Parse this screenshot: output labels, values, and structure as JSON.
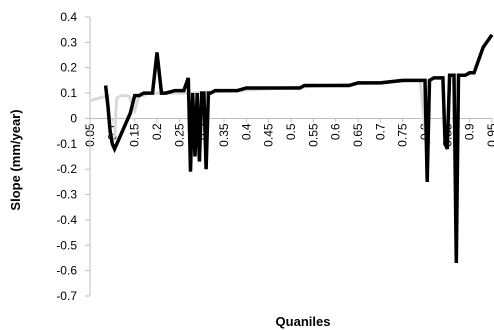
{
  "chart_data": {
    "type": "line",
    "title": "",
    "xlabel": "Quaniles",
    "ylabel": "Slope (mm/year)",
    "xlim": [
      0.05,
      0.95
    ],
    "ylim": [
      -0.7,
      0.4
    ],
    "y_ticks": [
      0.4,
      0.3,
      0.2,
      0.1,
      0,
      -0.1,
      -0.2,
      -0.3,
      -0.4,
      -0.5,
      -0.6,
      -0.7
    ],
    "x_ticks": [
      0.05,
      0.1,
      0.15,
      0.2,
      0.25,
      0.3,
      0.35,
      0.4,
      0.45,
      0.5,
      0.55,
      0.6,
      0.65,
      0.7,
      0.75,
      0.8,
      0.85,
      0.9,
      0.95
    ],
    "x_tick_labels": [
      "0.05",
      "0.1",
      "0.15",
      "0.2",
      "0.25",
      "0.3",
      "0.35",
      "0.4",
      "0.45",
      "0.5",
      "0.55",
      "0.6",
      "0.65",
      "0.7",
      "0.75",
      "0.8",
      "0.85",
      "0.9",
      "0.95"
    ],
    "grid": false,
    "legend": "none",
    "series": [
      {
        "color": "#d9d9d9",
        "x": [
          0.05,
          0.07,
          0.09,
          0.095,
          0.1,
          0.105,
          0.11,
          0.12,
          0.135,
          0.14,
          0.145,
          0.15,
          0.16,
          0.17,
          0.18,
          0.2,
          0.22,
          0.24,
          0.26,
          0.28,
          0.785,
          0.79,
          0.8,
          0.81
        ],
        "y": [
          0.07,
          0.08,
          0.09,
          -0.05,
          -0.08,
          -0.07,
          0.08,
          0.09,
          0.09,
          0.08,
          0.05,
          0.03,
          0.09,
          0.09,
          0.1,
          0.1,
          0.1,
          0.1,
          0.1,
          0.1,
          0.15,
          0.14,
          -0.05,
          -0.1
        ]
      },
      {
        "color": "#000000",
        "x": [
          0.085,
          0.09,
          0.095,
          0.1,
          0.105,
          0.14,
          0.15,
          0.16,
          0.17,
          0.18,
          0.19,
          0.2,
          0.21,
          0.215,
          0.22,
          0.24,
          0.26,
          0.27,
          0.275,
          0.28,
          0.285,
          0.29,
          0.295,
          0.3,
          0.305,
          0.31,
          0.315,
          0.32,
          0.33,
          0.34,
          0.35,
          0.38,
          0.4,
          0.43,
          0.45,
          0.5,
          0.52,
          0.53,
          0.55,
          0.6,
          0.63,
          0.65,
          0.7,
          0.75,
          0.79,
          0.8,
          0.805,
          0.81,
          0.82,
          0.84,
          0.845,
          0.85,
          0.855,
          0.86,
          0.865,
          0.87,
          0.875,
          0.88,
          0.885,
          0.89,
          0.9,
          0.91,
          0.93,
          0.95
        ],
        "y": [
          0.13,
          0.05,
          -0.05,
          -0.1,
          -0.12,
          0.02,
          0.09,
          0.09,
          0.1,
          0.1,
          0.1,
          0.26,
          0.1,
          0.1,
          0.1,
          0.11,
          0.11,
          0.16,
          -0.21,
          0.1,
          -0.15,
          0.1,
          -0.17,
          0.1,
          0.1,
          -0.2,
          0.1,
          0.1,
          0.11,
          0.11,
          0.11,
          0.11,
          0.12,
          0.12,
          0.12,
          0.12,
          0.12,
          0.13,
          0.13,
          0.13,
          0.13,
          0.14,
          0.14,
          0.15,
          0.15,
          0.15,
          -0.25,
          0.15,
          0.16,
          0.16,
          -0.1,
          -0.12,
          0.17,
          0.17,
          0.17,
          -0.57,
          0.17,
          0.17,
          0.17,
          0.17,
          0.18,
          0.18,
          0.28,
          0.33
        ]
      }
    ]
  }
}
